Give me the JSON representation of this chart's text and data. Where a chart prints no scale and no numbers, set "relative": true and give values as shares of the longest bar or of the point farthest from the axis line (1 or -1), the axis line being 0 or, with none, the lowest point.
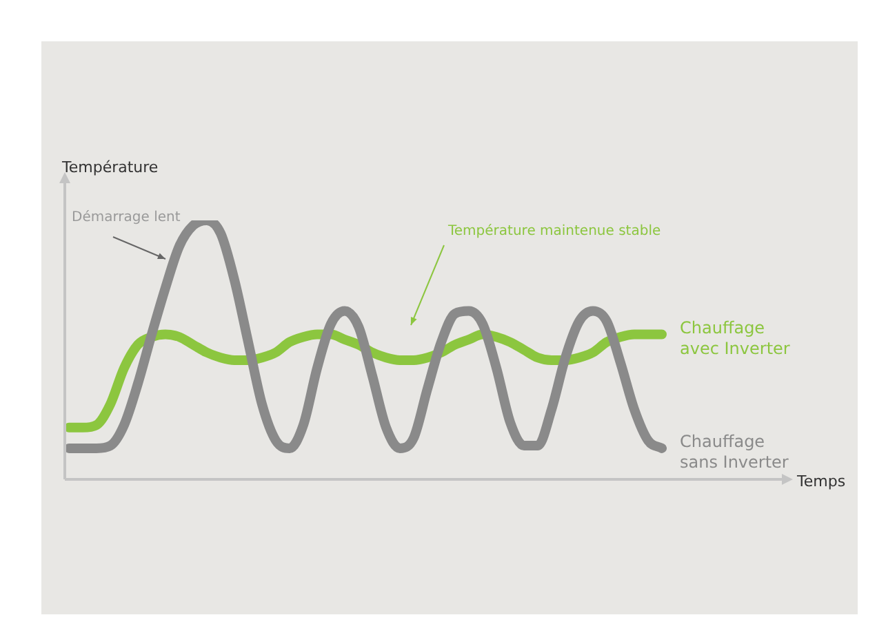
{
  "chart_data": {
    "type": "line",
    "relative": true,
    "ylabel": "Température",
    "marker": "none",
    "line_style": "solid",
    "categories": [
      null,
      null,
      null,
      null,
      null,
      null,
      null,
      null,
      null,
      null,
      null,
      null,
      null,
      null,
      null,
      null,
      null,
      null,
      null,
      null,
      null,
      null,
      null,
      null,
      null,
      null,
      null,
      null,
      null,
      null,
      null,
      null,
      null,
      null,
      null,
      null,
      null,
      null,
      null,
      null,
      null,
      null,
      null,
      null
    ],
    "annotations": [
      "Démarrage lent",
      "Température maintenue stable",
      "Temps"
    ],
    "series": [
      {
        "name": "Chauffage sans Inverter",
        "color": "#8a8a8a",
        "values": [
          0.12,
          0.12,
          0.12,
          0.13,
          0.21,
          0.37,
          0.56,
          0.74,
          0.9,
          0.98,
          1,
          0.95,
          0.77,
          0.53,
          0.29,
          0.15,
          0.12,
          0.21,
          0.43,
          0.6,
          0.65,
          0.59,
          0.4,
          0.2,
          0.12,
          0.16,
          0.35,
          0.53,
          0.64,
          0.65,
          0.6,
          0.43,
          0.22,
          0.13,
          0.13,
          0.27,
          0.47,
          0.61,
          0.65,
          0.61,
          0.45,
          0.27,
          0.15,
          0.12
        ]
      },
      {
        "name": "Chauffage avec Inverter",
        "color": "#8cc63f",
        "values": [
          0.2,
          0.2,
          0.21,
          0.29,
          0.43,
          0.52,
          0.55,
          0.56,
          0.55,
          0.52,
          0.49,
          0.47,
          0.46,
          0.46,
          0.47,
          0.49,
          0.53,
          0.55,
          0.56,
          0.56,
          0.54,
          0.52,
          0.49,
          0.47,
          0.46,
          0.46,
          0.47,
          0.49,
          0.52,
          0.54,
          0.56,
          0.55,
          0.53,
          0.5,
          0.47,
          0.46,
          0.46,
          0.47,
          0.49,
          0.53,
          0.55,
          0.56,
          0.56,
          0.56
        ]
      }
    ]
  }
}
